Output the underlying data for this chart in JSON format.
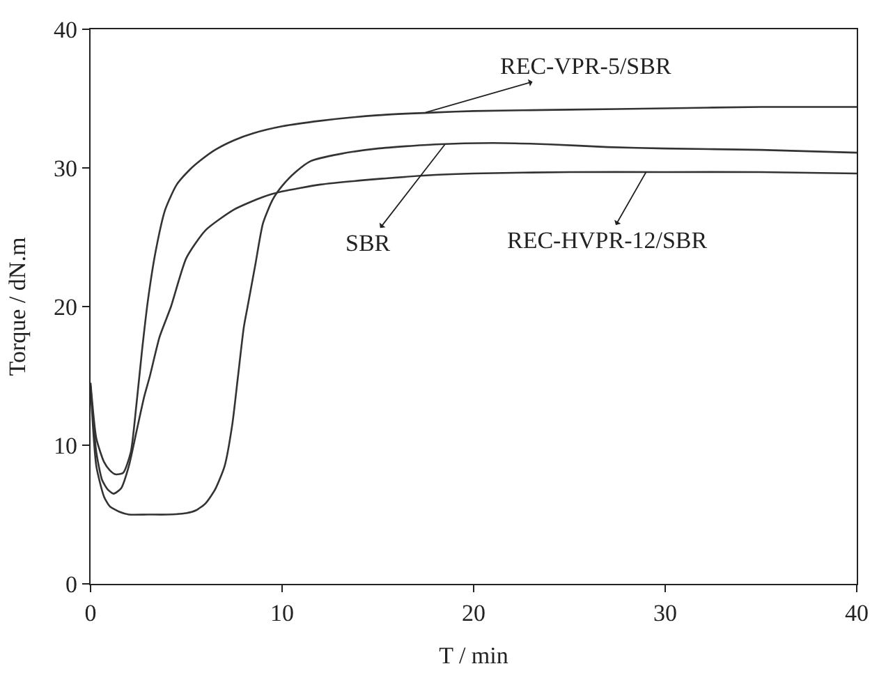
{
  "chart_data": {
    "type": "line",
    "xlabel": "T / min",
    "ylabel": "Torque / dN.m",
    "xlim": [
      0,
      40
    ],
    "xticks": [
      0,
      10,
      20,
      30,
      40
    ],
    "ylim": [
      0,
      40
    ],
    "yticks": [
      0,
      10,
      20,
      30,
      40
    ],
    "marker": "none",
    "line_style": "solid",
    "series": [
      {
        "color": "#333333",
        "x": [
          0,
          0.3,
          0.7,
          1.0,
          1.3,
          1.7,
          2.1,
          2.4,
          2.7,
          3.0,
          3.4,
          3.9,
          4.5,
          5.2,
          5.7,
          6.5,
          7.5,
          8.5,
          10,
          12,
          15,
          18,
          20,
          25,
          30,
          35,
          40
        ],
        "values": [
          14.5,
          10.5,
          8.8,
          8.2,
          7.9,
          8.0,
          9.5,
          13,
          17,
          20.5,
          24,
          27,
          28.8,
          29.9,
          30.5,
          31.3,
          32,
          32.5,
          33,
          33.4,
          33.8,
          34,
          34.1,
          34.2,
          34.3,
          34.4,
          34.4
        ]
      },
      {
        "color": "#333333",
        "x": [
          0,
          0.3,
          0.7,
          1.0,
          1.5,
          2.0,
          3.0,
          4.0,
          5.0,
          5.5,
          6.0,
          6.5,
          7.0,
          7.4,
          7.7,
          8.0,
          8.2,
          8.6,
          9.0,
          9.5,
          10,
          10.7,
          11.5,
          13,
          15,
          18,
          21,
          24,
          27,
          30,
          35,
          40
        ],
        "values": [
          14.2,
          8.5,
          6.3,
          5.6,
          5.2,
          5.0,
          5.0,
          5.0,
          5.1,
          5.3,
          5.8,
          6.8,
          8.5,
          11.5,
          15,
          18.5,
          20,
          23,
          26,
          27.7,
          28.7,
          29.7,
          30.5,
          31,
          31.4,
          31.7,
          31.8,
          31.7,
          31.5,
          31.4,
          31.3,
          31.1
        ]
      },
      {
        "color": "#333333",
        "x": [
          0,
          0.3,
          0.6,
          0.9,
          1.2,
          1.6,
          2.0,
          2.4,
          2.8,
          3.1,
          3.6,
          4.2,
          5.0,
          6.0,
          7.5,
          9,
          10,
          12,
          15,
          18,
          20,
          25,
          30,
          35,
          40
        ],
        "values": [
          14.3,
          9.5,
          7.5,
          6.8,
          6.5,
          6.9,
          8.5,
          11,
          13.5,
          15,
          17.8,
          20,
          23.5,
          25.5,
          27,
          27.9,
          28.3,
          28.8,
          29.2,
          29.5,
          29.6,
          29.7,
          29.7,
          29.7,
          29.6
        ]
      }
    ],
    "annotations": [
      {
        "text": "REC-VPR-5/SBR",
        "x": 17.5,
        "y": 34
      },
      {
        "text": "SBR",
        "x": 18.5,
        "y": 31.7
      },
      {
        "text": "REC-HVPR-12/SBR",
        "x": 29,
        "y": 29.7
      }
    ]
  }
}
